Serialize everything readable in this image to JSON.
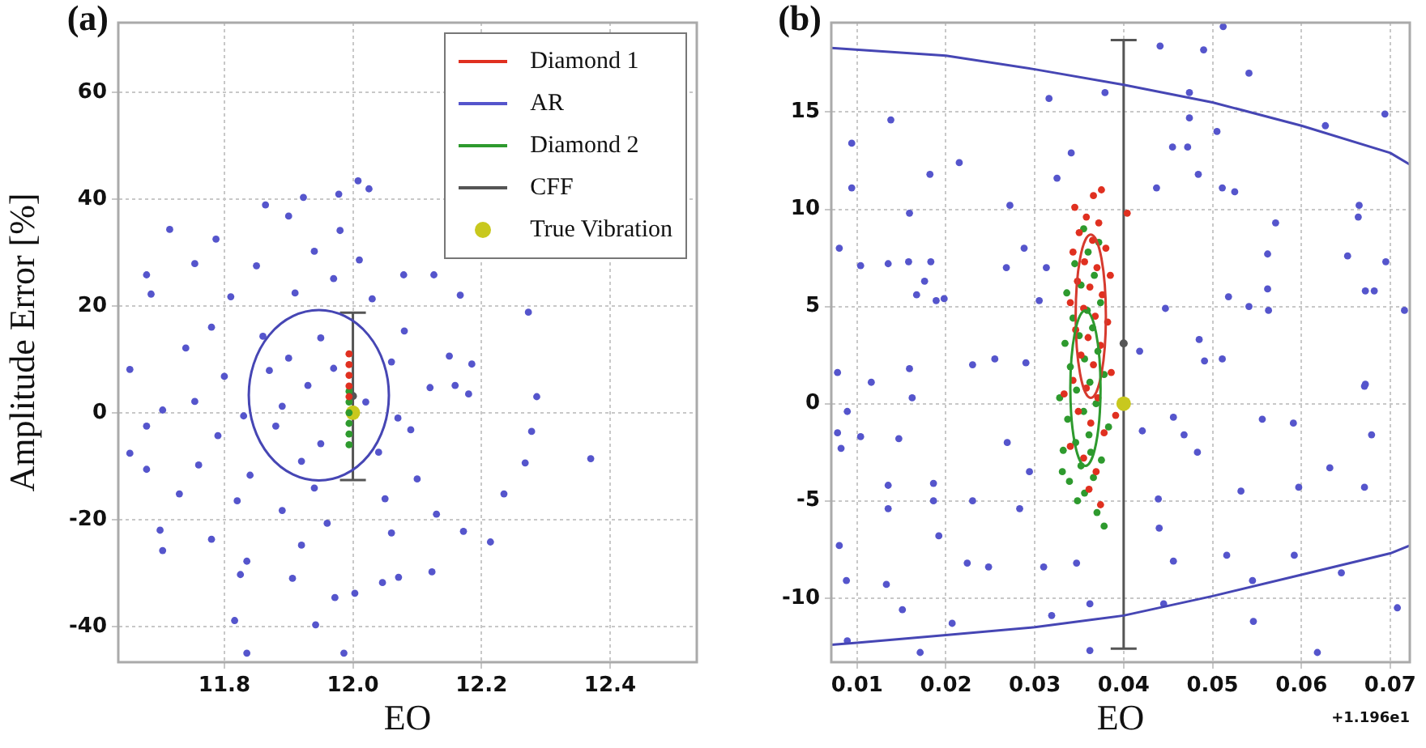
{
  "chart_data": [
    {
      "type": "scatter",
      "title": "(a)",
      "xlabel": "EO",
      "ylabel": "Amplitude Error [%]",
      "xlim": [
        11.635,
        12.535
      ],
      "ylim": [
        -46.7,
        73
      ],
      "xticks": [
        {
          "value": 11.8,
          "label": "11.8"
        },
        {
          "value": 12.0,
          "label": "12.0"
        },
        {
          "value": 12.2,
          "label": "12.2"
        },
        {
          "value": 12.4,
          "label": "12.4"
        }
      ],
      "yticks": [
        -40,
        -20,
        0,
        20,
        40,
        60
      ],
      "grid": true,
      "legend": "top right",
      "series": [
        {
          "name": "Diamond 1",
          "type": "scatter",
          "color": "#e03020",
          "x": [
            11.994,
            11.994,
            11.994,
            11.994,
            11.994
          ],
          "values": [
            11.0,
            9.0,
            7.0,
            5.0,
            3.0
          ]
        },
        {
          "name": "AR",
          "type": "scatter",
          "color": "#5555cc",
          "x": [
            11.864,
            11.715,
            11.787,
            11.679,
            11.686,
            11.754,
            12.273,
            12.167,
            12.126,
            12.079,
            12.008,
            12.025,
            11.978,
            11.923,
            12.286,
            12.278,
            12.37,
            12.268,
            12.235,
            12.214,
            12.172,
            12.123,
            12.071,
            12.046,
            12.003,
            11.972,
            11.906,
            11.942,
            11.816,
            11.825,
            11.835,
            11.704,
            11.7,
            11.78,
            11.986,
            11.835,
            11.679,
            11.653,
            11.679,
            11.704,
            11.653,
            11.754,
            12.18,
            12.159,
            12.185,
            11.9,
            11.93,
            11.97,
            11.88,
            11.95,
            12.02,
            11.86,
            11.92,
            12.04,
            11.83,
            11.8,
            12.06,
            12.09,
            11.91,
            11.97,
            12.03,
            11.85,
            11.94,
            12.01,
            11.78,
            11.76,
            11.82,
            11.89,
            11.96,
            12.05,
            12.1,
            12.12,
            12.08,
            11.74,
            11.95,
            11.89,
            11.84,
            11.92,
            12.06,
            12.13,
            11.73,
            11.81,
            11.87,
            11.94,
            12.07,
            11.79,
            12.15,
            11.98,
            11.9
          ],
          "values": [
            38.9,
            34.3,
            32.5,
            25.8,
            22.2,
            27.9,
            18.8,
            22,
            25.8,
            25.8,
            43.4,
            41.9,
            40.9,
            40.3,
            3.0,
            -3.5,
            -8.6,
            -9.4,
            -15.2,
            -24.2,
            -22.2,
            -29.8,
            -30.8,
            -31.8,
            -33.8,
            -34.6,
            -31.0,
            -39.7,
            -38.9,
            -30.3,
            -27.8,
            -25.8,
            -22,
            -23.7,
            -45.0,
            -45.0,
            -10.6,
            -7.6,
            -2.5,
            0.5,
            8.1,
            2.1,
            3.5,
            5.1,
            9.1,
            10.2,
            5.1,
            8.3,
            -2.5,
            -5.8,
            2.0,
            14.3,
            -9.1,
            -7.4,
            -0.6,
            6.8,
            9.5,
            -3.2,
            22.4,
            25.1,
            21.3,
            27.5,
            30.2,
            28.6,
            16.0,
            -9.8,
            -16.5,
            -18.3,
            -20.7,
            -16.1,
            -12.4,
            4.7,
            15.3,
            12.1,
            14.0,
            1.2,
            -11.7,
            -24.8,
            -22.5,
            -19.0,
            -15.2,
            21.7,
            7.9,
            -14.1,
            -1.0,
            -4.3,
            10.6,
            34.1,
            36.8
          ]
        },
        {
          "name": "Diamond 2",
          "type": "scatter",
          "color": "#2e9a2e",
          "x": [
            11.994,
            11.994,
            11.994,
            11.994,
            11.994,
            11.994
          ],
          "values": [
            4.0,
            2.0,
            0.0,
            -2.0,
            -4.0,
            -6.0
          ]
        },
        {
          "name": "CFF",
          "type": "scatter",
          "color": "#555555",
          "x": [
            12.0
          ],
          "values": [
            3.1
          ],
          "errors": [
            [
              -12.6,
              18.7
            ]
          ]
        },
        {
          "name": "True Vibration",
          "type": "scatter",
          "color": "#c8c81e",
          "x": [
            12.0
          ],
          "values": [
            0
          ]
        }
      ]
    },
    {
      "type": "scatter",
      "title": "(b)",
      "xlabel": "EO",
      "xlim": [
        0.0071,
        0.0722
      ],
      "ylim": [
        -13.3,
        19.6
      ],
      "xticks": [
        0.01,
        0.02,
        0.03,
        0.04,
        0.05,
        0.06,
        0.07
      ],
      "yticks": [
        -10,
        -5,
        0,
        5,
        10,
        15
      ],
      "grid": true,
      "annotations": [
        "+1.196e1"
      ],
      "series": [
        {
          "type": "line",
          "color": "#4646b4",
          "x": [
            0.0071,
            0.02,
            0.03,
            0.04,
            0.05,
            0.06,
            0.07,
            0.0722
          ],
          "values": [
            18.3,
            17.9,
            17.2,
            16.4,
            15.5,
            14.3,
            12.9,
            12.3
          ]
        },
        {
          "type": "line",
          "color": "#4646b4",
          "x": [
            0.0071,
            0.01,
            0.02,
            0.03,
            0.04,
            0.05,
            0.06,
            0.07,
            0.0722
          ],
          "values": [
            -12.4,
            -12.3,
            -11.9,
            -11.5,
            -10.9,
            -9.9,
            -8.8,
            -7.7,
            -7.3
          ]
        },
        {
          "type": "scatter",
          "color": "#555555",
          "x": [
            0.04
          ],
          "values": [
            3.1
          ],
          "errors": [
            [
              -12.6,
              18.7
            ]
          ]
        },
        {
          "type": "scatter",
          "color": "#c8c81e",
          "x": [
            0.04
          ],
          "values": [
            0
          ]
        },
        {
          "type": "scatter",
          "color": "#e03020",
          "x": [
            0.0375,
            0.0366,
            0.0404,
            0.0345,
            0.0358,
            0.0372,
            0.035,
            0.0365,
            0.038,
            0.0343,
            0.0356,
            0.037,
            0.0385,
            0.0348,
            0.0362,
            0.0376,
            0.034,
            0.0355,
            0.0368,
            0.0382,
            0.0346,
            0.036,
            0.0374,
            0.0352,
            0.0366,
            0.0386,
            0.0343,
            0.0358,
            0.0371,
            0.0349,
            0.0363,
            0.0378,
            0.034,
            0.0355,
            0.0369,
            0.0361,
            0.0374,
            0.0333,
            0.0391
          ],
          "values": [
            11.0,
            10.7,
            9.8,
            10.1,
            9.6,
            9.3,
            8.8,
            8.4,
            8.0,
            7.8,
            7.3,
            7.0,
            6.6,
            6.3,
            6.0,
            5.6,
            5.2,
            4.9,
            4.5,
            4.2,
            3.8,
            3.4,
            3.0,
            2.5,
            2.0,
            1.6,
            1.2,
            0.8,
            0.3,
            -0.4,
            -1.0,
            -1.5,
            -2.2,
            -2.8,
            -3.5,
            -4.4,
            -5.2,
            0.5,
            -0.6
          ]
        },
        {
          "type": "scatter",
          "color": "#2e9a2e",
          "x": [
            0.0378,
            0.037,
            0.0348,
            0.0356,
            0.0339,
            0.0366,
            0.0352,
            0.0375,
            0.0332,
            0.0346,
            0.0361,
            0.0383,
            0.0337,
            0.0355,
            0.0369,
            0.0328,
            0.0347,
            0.0362,
            0.0378,
            0.034,
            0.0356,
            0.0371,
            0.0334,
            0.035,
            0.0365,
            0.0343,
            0.0359,
            0.0374,
            0.0336,
            0.0352,
            0.0367,
            0.0345,
            0.036,
            0.0372,
            0.0355,
            0.0363,
            0.0331
          ],
          "values": [
            -6.3,
            -5.6,
            -5.0,
            -4.6,
            -4.0,
            -3.8,
            -3.2,
            -2.9,
            -2.4,
            -2.0,
            -1.6,
            -1.2,
            -0.8,
            -0.4,
            0.0,
            0.3,
            0.7,
            1.1,
            1.5,
            1.9,
            2.3,
            2.7,
            3.1,
            3.5,
            3.9,
            4.4,
            4.8,
            5.2,
            5.7,
            6.1,
            6.6,
            7.2,
            7.8,
            8.3,
            9.0,
            -2.5,
            -3.5
          ]
        },
        {
          "type": "scatter",
          "color": "#5555cc",
          "x": [
            0.0316,
            0.0379,
            0.0441,
            0.049,
            0.0541,
            0.0474,
            0.0474,
            0.0512,
            0.0694,
            0.0627,
            0.0505,
            0.0455,
            0.0472,
            0.0437,
            0.0484,
            0.0511,
            0.0525,
            0.0665,
            0.0664,
            0.0571,
            0.0652,
            0.0562,
            0.0562,
            0.0695,
            0.0682,
            0.0672,
            0.0716,
            0.0518,
            0.0541,
            0.0563,
            0.0447,
            0.0485,
            0.0491,
            0.0511,
            0.0671,
            0.0418,
            0.0094,
            0.0094,
            0.0138,
            0.0182,
            0.0215,
            0.008,
            0.0104,
            0.0135,
            0.0158,
            0.0183,
            0.0176,
            0.0167,
            0.0189,
            0.0198,
            0.0159,
            0.0272,
            0.0288,
            0.0268,
            0.0325,
            0.0341,
            0.0078,
            0.0116,
            0.0159,
            0.023,
            0.0255,
            0.029,
            0.0305,
            0.0313,
            0.0162,
            0.0089,
            0.0078,
            0.0082,
            0.0104,
            0.0147,
            0.0269,
            0.0135,
            0.0135,
            0.0186,
            0.0186,
            0.023,
            0.0192,
            0.0283,
            0.0294,
            0.008,
            0.0088,
            0.0133,
            0.0151,
            0.0224,
            0.0248,
            0.031,
            0.0319,
            0.0207,
            0.0089,
            0.0171,
            0.0362,
            0.0347,
            0.0362,
            0.0421,
            0.0456,
            0.0468,
            0.0483,
            0.0439,
            0.044,
            0.0456,
            0.0445,
            0.0516,
            0.0556,
            0.0591,
            0.0532,
            0.0597,
            0.0632,
            0.0671,
            0.0679,
            0.0672,
            0.0592,
            0.0545,
            0.0645,
            0.0546,
            0.0618,
            0.0708
          ],
          "values": [
            15.7,
            16.0,
            18.4,
            18.2,
            17.0,
            16.0,
            14.7,
            19.4,
            14.9,
            14.3,
            14.0,
            13.2,
            13.2,
            11.1,
            11.8,
            11.1,
            10.9,
            10.2,
            9.6,
            9.3,
            7.6,
            7.7,
            5.9,
            7.3,
            5.8,
            5.8,
            4.8,
            5.5,
            5.0,
            4.8,
            4.9,
            3.3,
            2.2,
            2.3,
            0.9,
            2.7,
            13.4,
            11.1,
            14.6,
            11.8,
            12.4,
            8.0,
            7.1,
            7.2,
            7.3,
            7.3,
            6.3,
            5.6,
            5.3,
            5.4,
            9.8,
            10.2,
            8.0,
            7.0,
            11.6,
            12.9,
            1.6,
            1.1,
            1.8,
            2.0,
            2.3,
            2.1,
            5.3,
            7.0,
            0.3,
            -0.4,
            -1.5,
            -2.3,
            -1.7,
            -1.8,
            -2.0,
            -4.2,
            -5.4,
            -4.1,
            -5.0,
            -5.0,
            -6.8,
            -5.4,
            -3.5,
            -7.3,
            -9.1,
            -9.3,
            -10.6,
            -8.2,
            -8.4,
            -8.4,
            -10.9,
            -11.3,
            -12.2,
            -12.8,
            -12.7,
            -8.2,
            -10.3,
            -1.4,
            -0.7,
            -1.6,
            -2.5,
            -4.9,
            -6.4,
            -8.1,
            -10.3,
            -7.8,
            -0.8,
            -1.0,
            -4.5,
            -4.3,
            -3.3,
            -4.3,
            -1.6,
            1.0,
            -7.8,
            -9.1,
            -8.7,
            -11.2,
            -12.8,
            -10.5
          ]
        }
      ]
    }
  ]
}
